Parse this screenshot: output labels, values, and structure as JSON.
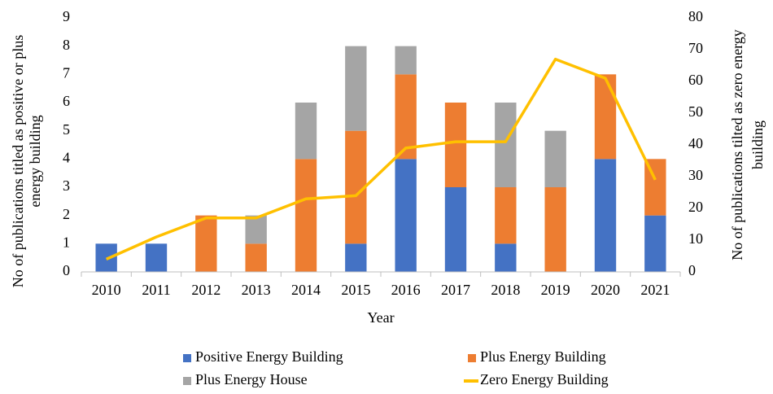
{
  "chart_data": {
    "type": "bar",
    "stacked": true,
    "xlabel": "Year",
    "ylabel": [
      "No of publications titled as positive or plus",
      "energy building"
    ],
    "y2label": [
      "No of publications tilted as zero energy",
      "building"
    ],
    "categories": [
      "2010",
      "2011",
      "2012",
      "2013",
      "2014",
      "2015",
      "2016",
      "2017",
      "2018",
      "2019",
      "2020",
      "2021"
    ],
    "series": [
      {
        "name": "Positive Energy Building",
        "color": "#4472c4",
        "values": [
          1,
          1,
          0,
          0,
          0,
          1,
          4,
          3,
          1,
          0,
          4,
          2
        ]
      },
      {
        "name": "Plus Energy Building",
        "color": "#ed7d31",
        "values": [
          0,
          0,
          2,
          1,
          4,
          4,
          3,
          3,
          2,
          3,
          3,
          2
        ]
      },
      {
        "name": "Plus Energy House",
        "color": "#a5a5a5",
        "values": [
          0,
          0,
          0,
          1,
          2,
          3,
          1,
          0,
          3,
          2,
          0,
          0
        ]
      },
      {
        "name": "Zero Energy Building",
        "color": "#ffc000",
        "type": "line",
        "axis": "y2",
        "values": [
          4,
          11,
          17,
          17,
          23,
          24,
          39,
          41,
          41,
          67,
          61,
          29
        ]
      }
    ],
    "ylim": [
      0,
      9
    ],
    "yticks": [
      0,
      1,
      2,
      3,
      4,
      5,
      6,
      7,
      8,
      9
    ],
    "y2lim": [
      0,
      80
    ],
    "y2ticks": [
      0,
      10,
      20,
      30,
      40,
      50,
      60,
      70,
      80
    ],
    "legend": "bottom"
  }
}
